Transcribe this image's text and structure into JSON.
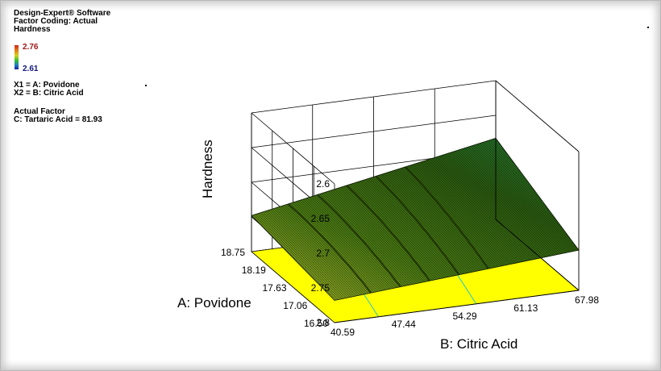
{
  "header": {
    "software": "Design-Expert® Software",
    "coding": "Factor Coding: Actual",
    "response": "Hardness"
  },
  "legend": {
    "max": "2.76",
    "min": "2.61"
  },
  "variables": {
    "x1": "X1 = A: Povidone",
    "x2": "X2 = B: Citric Acid"
  },
  "actual_factor": {
    "title": "Actual Factor",
    "value": "C: Tartaric Acid = 81.93"
  },
  "colors": {
    "surface_dark": "#1a2a00",
    "surface_green": "#3c8a1c",
    "floor": "#ffff00",
    "floor_contour": "#2ec8c0"
  },
  "chart_data": {
    "type": "surface3d",
    "zlabel": "Hardness",
    "xlabel": "A: Povidone",
    "ylabel": "B: Citric Acid",
    "z_ticks": [
      "2.6",
      "2.65",
      "2.7",
      "2.75",
      "2.8"
    ],
    "a_ticks": [
      "18.75",
      "18.19",
      "17.63",
      "17.06",
      "16.50"
    ],
    "b_ticks": [
      "40.59",
      "47.44",
      "54.29",
      "61.13",
      "67.98"
    ],
    "zlim": [
      2.6,
      2.8
    ],
    "xlim": [
      16.5,
      18.75
    ],
    "ylim": [
      40.59,
      67.98
    ],
    "response_range": [
      2.61,
      2.76
    ],
    "z_axis_reversed": true,
    "grid": true
  }
}
